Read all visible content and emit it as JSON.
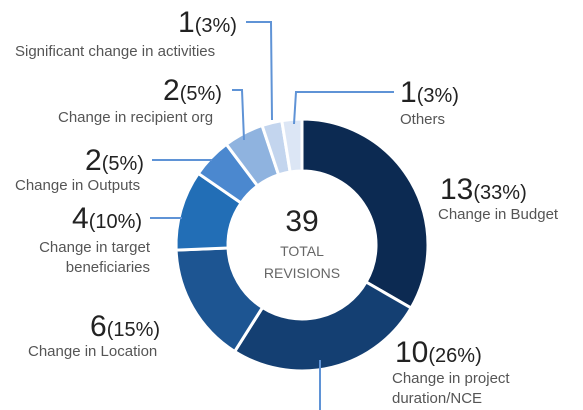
{
  "chart_data": {
    "type": "donut",
    "total": 39,
    "center_label": "TOTAL REVISIONS",
    "categories": [
      "Change in Budget",
      "Change in project duration/NCE",
      "Change in Location",
      "Change in target beneficiaries",
      "Change in Outputs",
      "Change in recipient org",
      "Significant change in activities",
      "Others"
    ],
    "values": [
      13,
      10,
      6,
      4,
      2,
      2,
      1,
      1
    ],
    "percent_labels": [
      "(33%)",
      "(26%)",
      "(15%)",
      "(10%)",
      "(5%)",
      "(5%)",
      "(3%)",
      "(3%)"
    ],
    "colors": [
      "#0c2a52",
      "#143f72",
      "#1d5592",
      "#226eb6",
      "#4b88cf",
      "#8fb3df",
      "#c3d5ee",
      "#dce6f5"
    ]
  }
}
